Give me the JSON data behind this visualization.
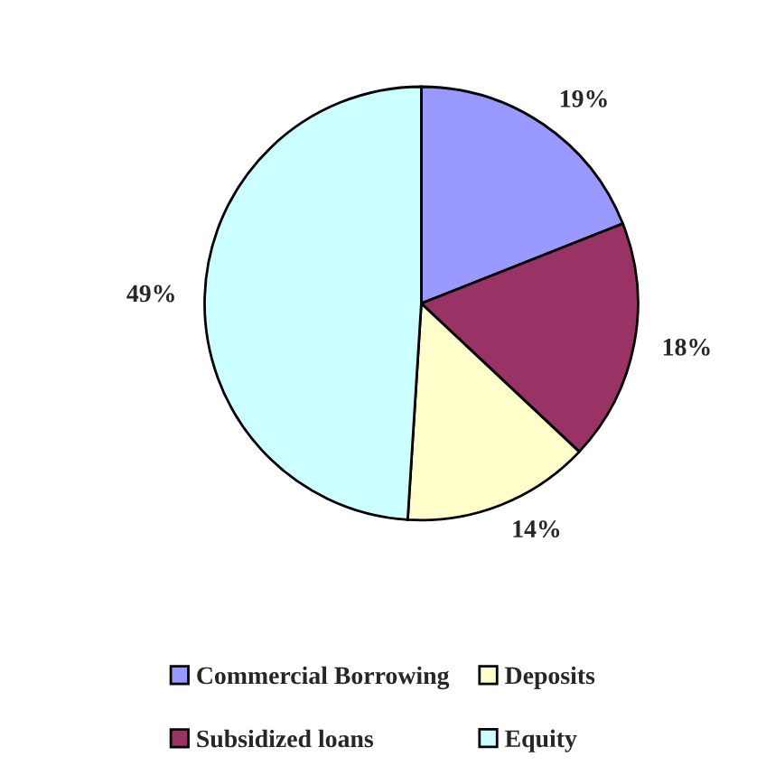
{
  "chart_data": {
    "type": "pie",
    "categories": [
      "Commercial Borrowing",
      "Subsidized loans",
      "Deposits",
      "Equity"
    ],
    "values": [
      19,
      18,
      14,
      49
    ],
    "colors": [
      "#9999ff",
      "#993366",
      "#ffffcc",
      "#ccffff"
    ],
    "value_labels": [
      "19%",
      "18%",
      "14%",
      "49%"
    ],
    "legend": "bottom"
  }
}
